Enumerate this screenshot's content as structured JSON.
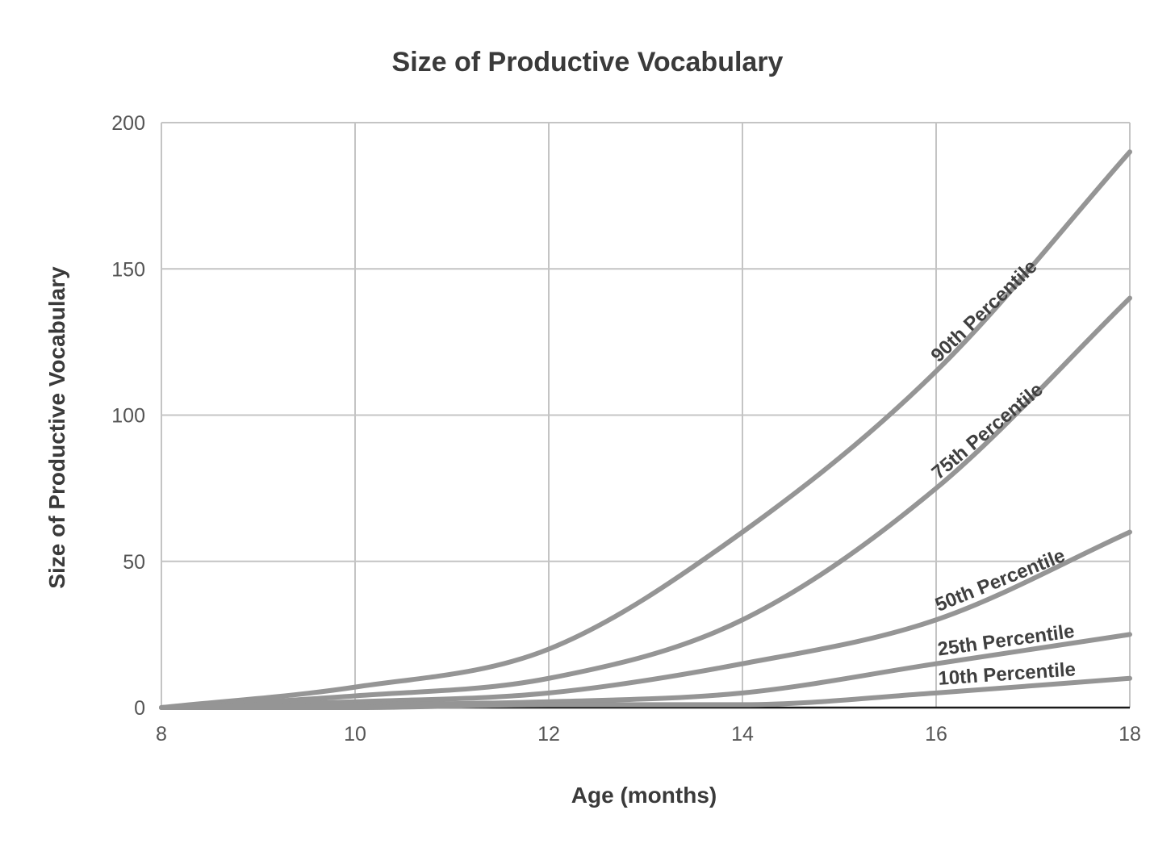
{
  "chart_data": {
    "type": "line",
    "title": "Size of Productive Vocabulary",
    "xlabel": "Age (months)",
    "ylabel": "Size of Productive Vocabulary",
    "xlim": [
      8,
      18
    ],
    "ylim": [
      0,
      200
    ],
    "x_ticks": [
      8,
      10,
      12,
      14,
      16,
      18
    ],
    "y_ticks": [
      0,
      50,
      100,
      150,
      200
    ],
    "grid": true,
    "x": [
      8,
      10,
      12,
      14,
      16,
      18
    ],
    "series": [
      {
        "name": "90th Percentile",
        "values": [
          0,
          7,
          20,
          60,
          115,
          190
        ],
        "color": "#959595"
      },
      {
        "name": "75th Percentile",
        "values": [
          0,
          4,
          10,
          30,
          75,
          140
        ],
        "color": "#959595"
      },
      {
        "name": "50th Percentile",
        "values": [
          0,
          2,
          5,
          15,
          30,
          60
        ],
        "color": "#959595"
      },
      {
        "name": "25th Percentile",
        "values": [
          0,
          1,
          2,
          5,
          15,
          25
        ],
        "color": "#959595"
      },
      {
        "name": "10th Percentile",
        "values": [
          0,
          0,
          1,
          1,
          5,
          10
        ],
        "color": "#959595"
      }
    ]
  }
}
